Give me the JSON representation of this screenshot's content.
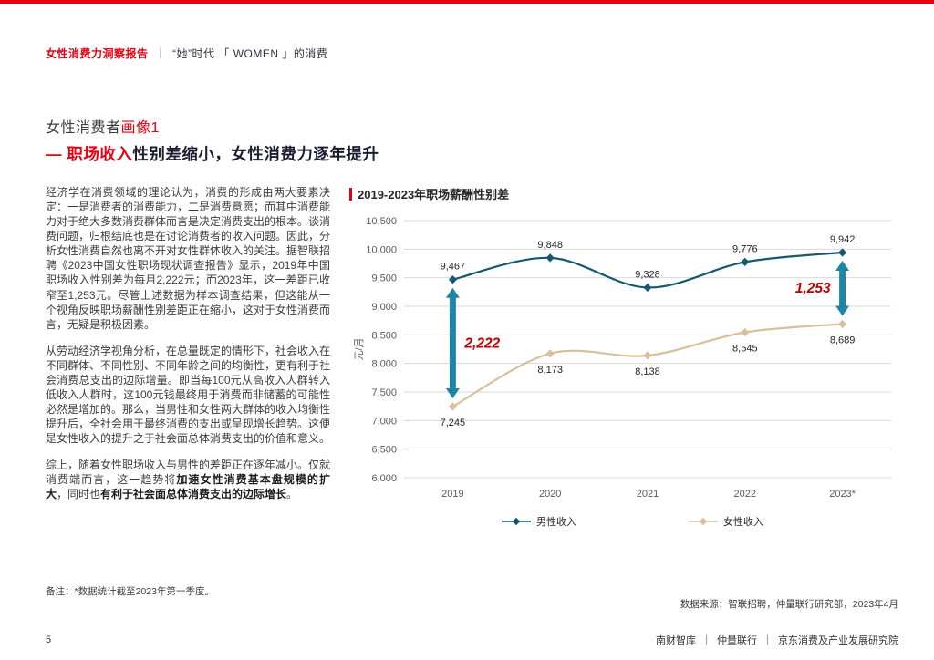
{
  "colors": {
    "accent_red": "#E60012",
    "chart_red": "#C00000",
    "male": "#17586F",
    "female": "#D8C09E",
    "arrow": "#1D85A8",
    "grid": "#D9D9D9"
  },
  "header": {
    "report_title": "女性消费力洞察报告",
    "separator": "｜",
    "subtitle": "“她”时代 「 WOMEN 」的消费"
  },
  "section_title": {
    "line1_plain": "女性消费者",
    "line1_red": "画像1",
    "line2_red": "— 职场收入",
    "line2_rest": "性别差缩小，女性消费力逐年提升"
  },
  "paragraphs": [
    [
      {
        "text": "经济学在消费领域的理论认为，消费的形成由两大要素决定：一是消费者的消费能力，二是消费意愿；而其中消费能力对于绝大多数消费群体而言是决定消费支出的根本。谈消费问题，归根结底也是在讨论消费者的收入问题。因此，分析女性消费自然也离不开对女性群体收入的关注。据智联招聘《2023中国女性职场现状调查报告》显示，2019年中国职场收入性别差为每月2,222元；而2023年，这一差距已收窄至1,253元。尽管上述数据为样本调查结果，但这能从一个视角反映职场薪酬性别差距正在缩小，这对于女性消费而言，无疑是积极因素。",
        "bold": false
      }
    ],
    [
      {
        "text": "从劳动经济学视角分析，在总量既定的情形下，社会收入在不同群体、不同性别、不同年龄之间的均衡性，更有利于社会消费总支出的边际增量。即当每100元从高收入人群转入低收入人群时，这100元钱最终用于消费而非储蓄的可能性必然是增加的。那么，当男性和女性两大群体的收入均衡性提升后，全社会用于最终消费的支出或呈现增长趋势。这便是女性收入的提升之于社会面总体消费支出的价值和意义。",
        "bold": false
      }
    ],
    [
      {
        "text": "综上，随着女性职场收入与男性的差距正在逐年减小。仅就消费端而言，这一趋势将",
        "bold": false
      },
      {
        "text": "加速女性消费基本盘规模的扩大",
        "bold": true
      },
      {
        "text": "，同时也",
        "bold": false
      },
      {
        "text": "有利于社会面总体消费支出的边际增长",
        "bold": true
      },
      {
        "text": "。",
        "bold": false
      }
    ]
  ],
  "note": "备注：*数据统计截至2023年第一季度。",
  "source": "数据来源：智联招聘，仲量联行研究部，2023年4月",
  "footer": {
    "page_number": "5",
    "orgs": [
      "南财智库",
      "仲量联行",
      "京东消费及产业发展研究院"
    ],
    "separator": "｜"
  },
  "chart_data": {
    "type": "line",
    "title": "2019-2023年职场薪酬性别差",
    "ylabel": "元/月",
    "categories": [
      "2019",
      "2020",
      "2021",
      "2022",
      "2023*"
    ],
    "series": [
      {
        "name": "男性收入",
        "color": "#17586F",
        "values": [
          9467,
          9848,
          9328,
          9776,
          9942
        ],
        "labels": [
          "9,467",
          "9,848",
          "9,328",
          "9,776",
          "9,942"
        ],
        "label_position": "above"
      },
      {
        "name": "女性收入",
        "color": "#D8C09E",
        "values": [
          7245,
          8173,
          8138,
          8545,
          8689
        ],
        "labels": [
          "7,245",
          "8,173",
          "8,138",
          "8,545",
          "8,689"
        ],
        "label_position": "below"
      }
    ],
    "ylim": [
      6000,
      10500
    ],
    "ytick_step": 500,
    "grid": true,
    "legend_position": "bottom",
    "annotations": [
      {
        "category": "2019",
        "text": "2,222",
        "side": "right"
      },
      {
        "category": "2023*",
        "text": "1,253",
        "side": "left"
      }
    ]
  }
}
